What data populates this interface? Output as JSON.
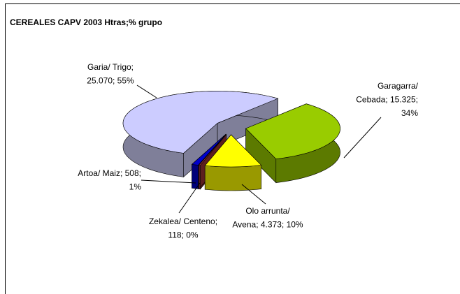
{
  "chart_data": {
    "type": "pie3d",
    "title": "CEREALES CAPV 2003 Htras;% grupo",
    "categories": [
      "Garia/ Trigo",
      "Garagarra/ Cebada",
      "Olo arrunta/ Avena",
      "Zekalea/ Centeno",
      "Artoa/ Maiz"
    ],
    "values": [
      25070,
      15325,
      4373,
      118,
      508
    ],
    "labels": [
      [
        "Garia/ Trigo;",
        "25.070; 55%"
      ],
      [
        "Garagarra/",
        "Cebada; 15.325;",
        "34%"
      ],
      [
        "Olo arrunta/",
        "Avena; 4.373; 10%"
      ],
      [
        "Zekalea/ Centeno;",
        "118; 0%"
      ],
      [
        "Artoa/ Maiz; 508;",
        "1%"
      ]
    ],
    "colors": [
      "#ccccff",
      "#99cc00",
      "#ffff00",
      "#993333",
      "#0000cc"
    ],
    "side_colors": [
      "#7f7f99",
      "#5c7a00",
      "#999900",
      "#5c1f1f",
      "#00007a"
    ]
  }
}
